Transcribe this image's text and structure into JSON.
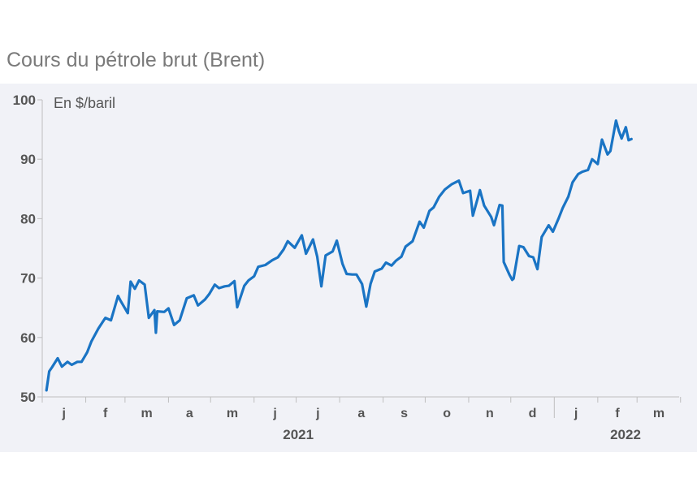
{
  "chart_data": {
    "type": "line",
    "title": "Cours du pétrole brut (Brent)",
    "ylabel": "En $/baril",
    "ylim": [
      50,
      100
    ],
    "yticks": [
      50,
      60,
      70,
      80,
      90,
      100
    ],
    "month_labels": [
      "j",
      "f",
      "m",
      "a",
      "m",
      "j",
      "j",
      "a",
      "s",
      "o",
      "n",
      "d",
      "j",
      "f",
      "m"
    ],
    "year_labels": [
      "2021",
      "2022"
    ],
    "x_start": "2021-01-01",
    "x_end": "2022-03-31",
    "line_color": "#1a74c4",
    "grid": false,
    "series": [
      {
        "name": "",
        "points": [
          [
            "2021-01-04",
            51.1
          ],
          [
            "2021-01-06",
            54.3
          ],
          [
            "2021-01-08",
            55.0
          ],
          [
            "2021-01-12",
            56.5
          ],
          [
            "2021-01-15",
            55.1
          ],
          [
            "2021-01-19",
            55.9
          ],
          [
            "2021-01-22",
            55.4
          ],
          [
            "2021-01-26",
            55.9
          ],
          [
            "2021-01-29",
            55.9
          ],
          [
            "2021-02-02",
            57.5
          ],
          [
            "2021-02-05",
            59.3
          ],
          [
            "2021-02-10",
            61.5
          ],
          [
            "2021-02-15",
            63.3
          ],
          [
            "2021-02-19",
            62.9
          ],
          [
            "2021-02-24",
            67.0
          ],
          [
            "2021-02-26",
            66.1
          ],
          [
            "2021-03-03",
            64.1
          ],
          [
            "2021-03-05",
            69.4
          ],
          [
            "2021-03-08",
            68.2
          ],
          [
            "2021-03-11",
            69.6
          ],
          [
            "2021-03-15",
            68.9
          ],
          [
            "2021-03-18",
            63.3
          ],
          [
            "2021-03-22",
            64.6
          ],
          [
            "2021-03-23",
            60.8
          ],
          [
            "2021-03-24",
            64.4
          ],
          [
            "2021-03-29",
            64.3
          ],
          [
            "2021-04-01",
            64.9
          ],
          [
            "2021-04-05",
            62.1
          ],
          [
            "2021-04-09",
            62.9
          ],
          [
            "2021-04-14",
            66.6
          ],
          [
            "2021-04-19",
            67.1
          ],
          [
            "2021-04-22",
            65.4
          ],
          [
            "2021-04-27",
            66.4
          ],
          [
            "2021-04-30",
            67.3
          ],
          [
            "2021-05-04",
            68.9
          ],
          [
            "2021-05-07",
            68.3
          ],
          [
            "2021-05-11",
            68.6
          ],
          [
            "2021-05-14",
            68.7
          ],
          [
            "2021-05-18",
            69.5
          ],
          [
            "2021-05-20",
            65.1
          ],
          [
            "2021-05-25",
            68.7
          ],
          [
            "2021-05-28",
            69.6
          ],
          [
            "2021-06-01",
            70.3
          ],
          [
            "2021-06-04",
            71.9
          ],
          [
            "2021-06-09",
            72.2
          ],
          [
            "2021-06-14",
            73.0
          ],
          [
            "2021-06-18",
            73.5
          ],
          [
            "2021-06-22",
            74.8
          ],
          [
            "2021-06-25",
            76.2
          ],
          [
            "2021-06-30",
            75.1
          ],
          [
            "2021-07-05",
            77.2
          ],
          [
            "2021-07-08",
            74.1
          ],
          [
            "2021-07-13",
            76.5
          ],
          [
            "2021-07-16",
            73.6
          ],
          [
            "2021-07-19",
            68.6
          ],
          [
            "2021-07-22",
            73.8
          ],
          [
            "2021-07-27",
            74.5
          ],
          [
            "2021-07-30",
            76.3
          ],
          [
            "2021-08-03",
            72.4
          ],
          [
            "2021-08-06",
            70.7
          ],
          [
            "2021-08-10",
            70.6
          ],
          [
            "2021-08-13",
            70.6
          ],
          [
            "2021-08-17",
            69.0
          ],
          [
            "2021-08-20",
            65.2
          ],
          [
            "2021-08-23",
            69.0
          ],
          [
            "2021-08-26",
            71.1
          ],
          [
            "2021-08-31",
            71.6
          ],
          [
            "2021-09-03",
            72.6
          ],
          [
            "2021-09-07",
            72.1
          ],
          [
            "2021-09-10",
            72.9
          ],
          [
            "2021-09-14",
            73.6
          ],
          [
            "2021-09-17",
            75.3
          ],
          [
            "2021-09-22",
            76.2
          ],
          [
            "2021-09-27",
            79.5
          ],
          [
            "2021-09-30",
            78.5
          ],
          [
            "2021-10-04",
            81.3
          ],
          [
            "2021-10-07",
            81.9
          ],
          [
            "2021-10-11",
            83.7
          ],
          [
            "2021-10-15",
            84.9
          ],
          [
            "2021-10-20",
            85.8
          ],
          [
            "2021-10-25",
            86.4
          ],
          [
            "2021-10-28",
            84.3
          ],
          [
            "2021-11-02",
            84.7
          ],
          [
            "2021-11-04",
            80.5
          ],
          [
            "2021-11-09",
            84.8
          ],
          [
            "2021-11-12",
            82.2
          ],
          [
            "2021-11-17",
            80.3
          ],
          [
            "2021-11-19",
            78.9
          ],
          [
            "2021-11-23",
            82.3
          ],
          [
            "2021-11-25",
            82.2
          ],
          [
            "2021-11-26",
            72.7
          ],
          [
            "2021-11-30",
            70.6
          ],
          [
            "2021-12-02",
            69.7
          ],
          [
            "2021-12-03",
            69.9
          ],
          [
            "2021-12-07",
            75.4
          ],
          [
            "2021-12-10",
            75.2
          ],
          [
            "2021-12-14",
            73.7
          ],
          [
            "2021-12-17",
            73.5
          ],
          [
            "2021-12-20",
            71.5
          ],
          [
            "2021-12-23",
            76.9
          ],
          [
            "2021-12-28",
            78.9
          ],
          [
            "2021-12-31",
            77.8
          ],
          [
            "2022-01-04",
            80.0
          ],
          [
            "2022-01-07",
            81.8
          ],
          [
            "2022-01-11",
            83.7
          ],
          [
            "2022-01-14",
            86.1
          ],
          [
            "2022-01-18",
            87.5
          ],
          [
            "2022-01-21",
            87.9
          ],
          [
            "2022-01-25",
            88.2
          ],
          [
            "2022-01-28",
            90.0
          ],
          [
            "2022-02-01",
            89.2
          ],
          [
            "2022-02-04",
            93.3
          ],
          [
            "2022-02-08",
            90.8
          ],
          [
            "2022-02-10",
            91.4
          ],
          [
            "2022-02-14",
            96.5
          ],
          [
            "2022-02-16",
            94.8
          ],
          [
            "2022-02-18",
            93.5
          ],
          [
            "2022-02-21",
            95.4
          ],
          [
            "2022-02-23",
            93.2
          ],
          [
            "2022-02-25",
            93.4
          ]
        ]
      }
    ]
  }
}
